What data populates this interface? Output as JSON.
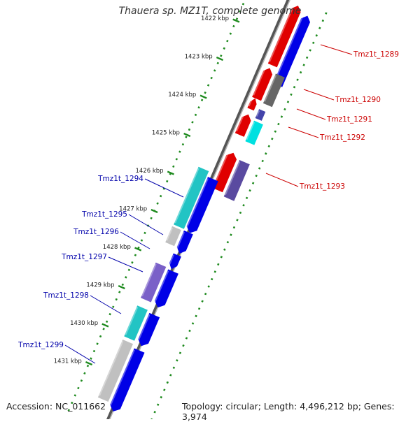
{
  "title": "Thauera sp. MZ1T, complete genome",
  "footer": {
    "accession": "Accession: NC_011662",
    "summary": "Topology: circular; Length: 4,496,212 bp; Genes: 3,974"
  },
  "colors": {
    "backbone": "#7f7f7f",
    "tick_track": "#1e8a1e",
    "label_forward": "#cc0000",
    "label_reverse": "#0000aa"
  },
  "scale_ticks": [
    {
      "kbp": 1422,
      "label": "1422 kbp"
    },
    {
      "kbp": 1423,
      "label": "1423 kbp"
    },
    {
      "kbp": 1424,
      "label": "1424 kbp"
    },
    {
      "kbp": 1425,
      "label": "1425 kbp"
    },
    {
      "kbp": 1426,
      "label": "1426 kbp"
    },
    {
      "kbp": 1427,
      "label": "1427 kbp"
    },
    {
      "kbp": 1428,
      "label": "1428 kbp"
    },
    {
      "kbp": 1429,
      "label": "1429 kbp"
    },
    {
      "kbp": 1430,
      "label": "1430 kbp"
    },
    {
      "kbp": 1431,
      "label": "1431 kbp"
    }
  ],
  "gene_labels": [
    {
      "name": "Tmz1t_1289",
      "side": "right"
    },
    {
      "name": "Tmz1t_1290",
      "side": "right"
    },
    {
      "name": "Tmz1t_1291",
      "side": "right"
    },
    {
      "name": "Tmz1t_1292",
      "side": "right"
    },
    {
      "name": "Tmz1t_1293",
      "side": "right"
    },
    {
      "name": "Tmz1t_1294",
      "side": "left"
    },
    {
      "name": "Tmz1t_1295",
      "side": "left"
    },
    {
      "name": "Tmz1t_1296",
      "side": "left"
    },
    {
      "name": "Tmz1t_1297",
      "side": "left"
    },
    {
      "name": "Tmz1t_1298",
      "side": "left"
    },
    {
      "name": "Tmz1t_1299",
      "side": "left"
    }
  ]
}
